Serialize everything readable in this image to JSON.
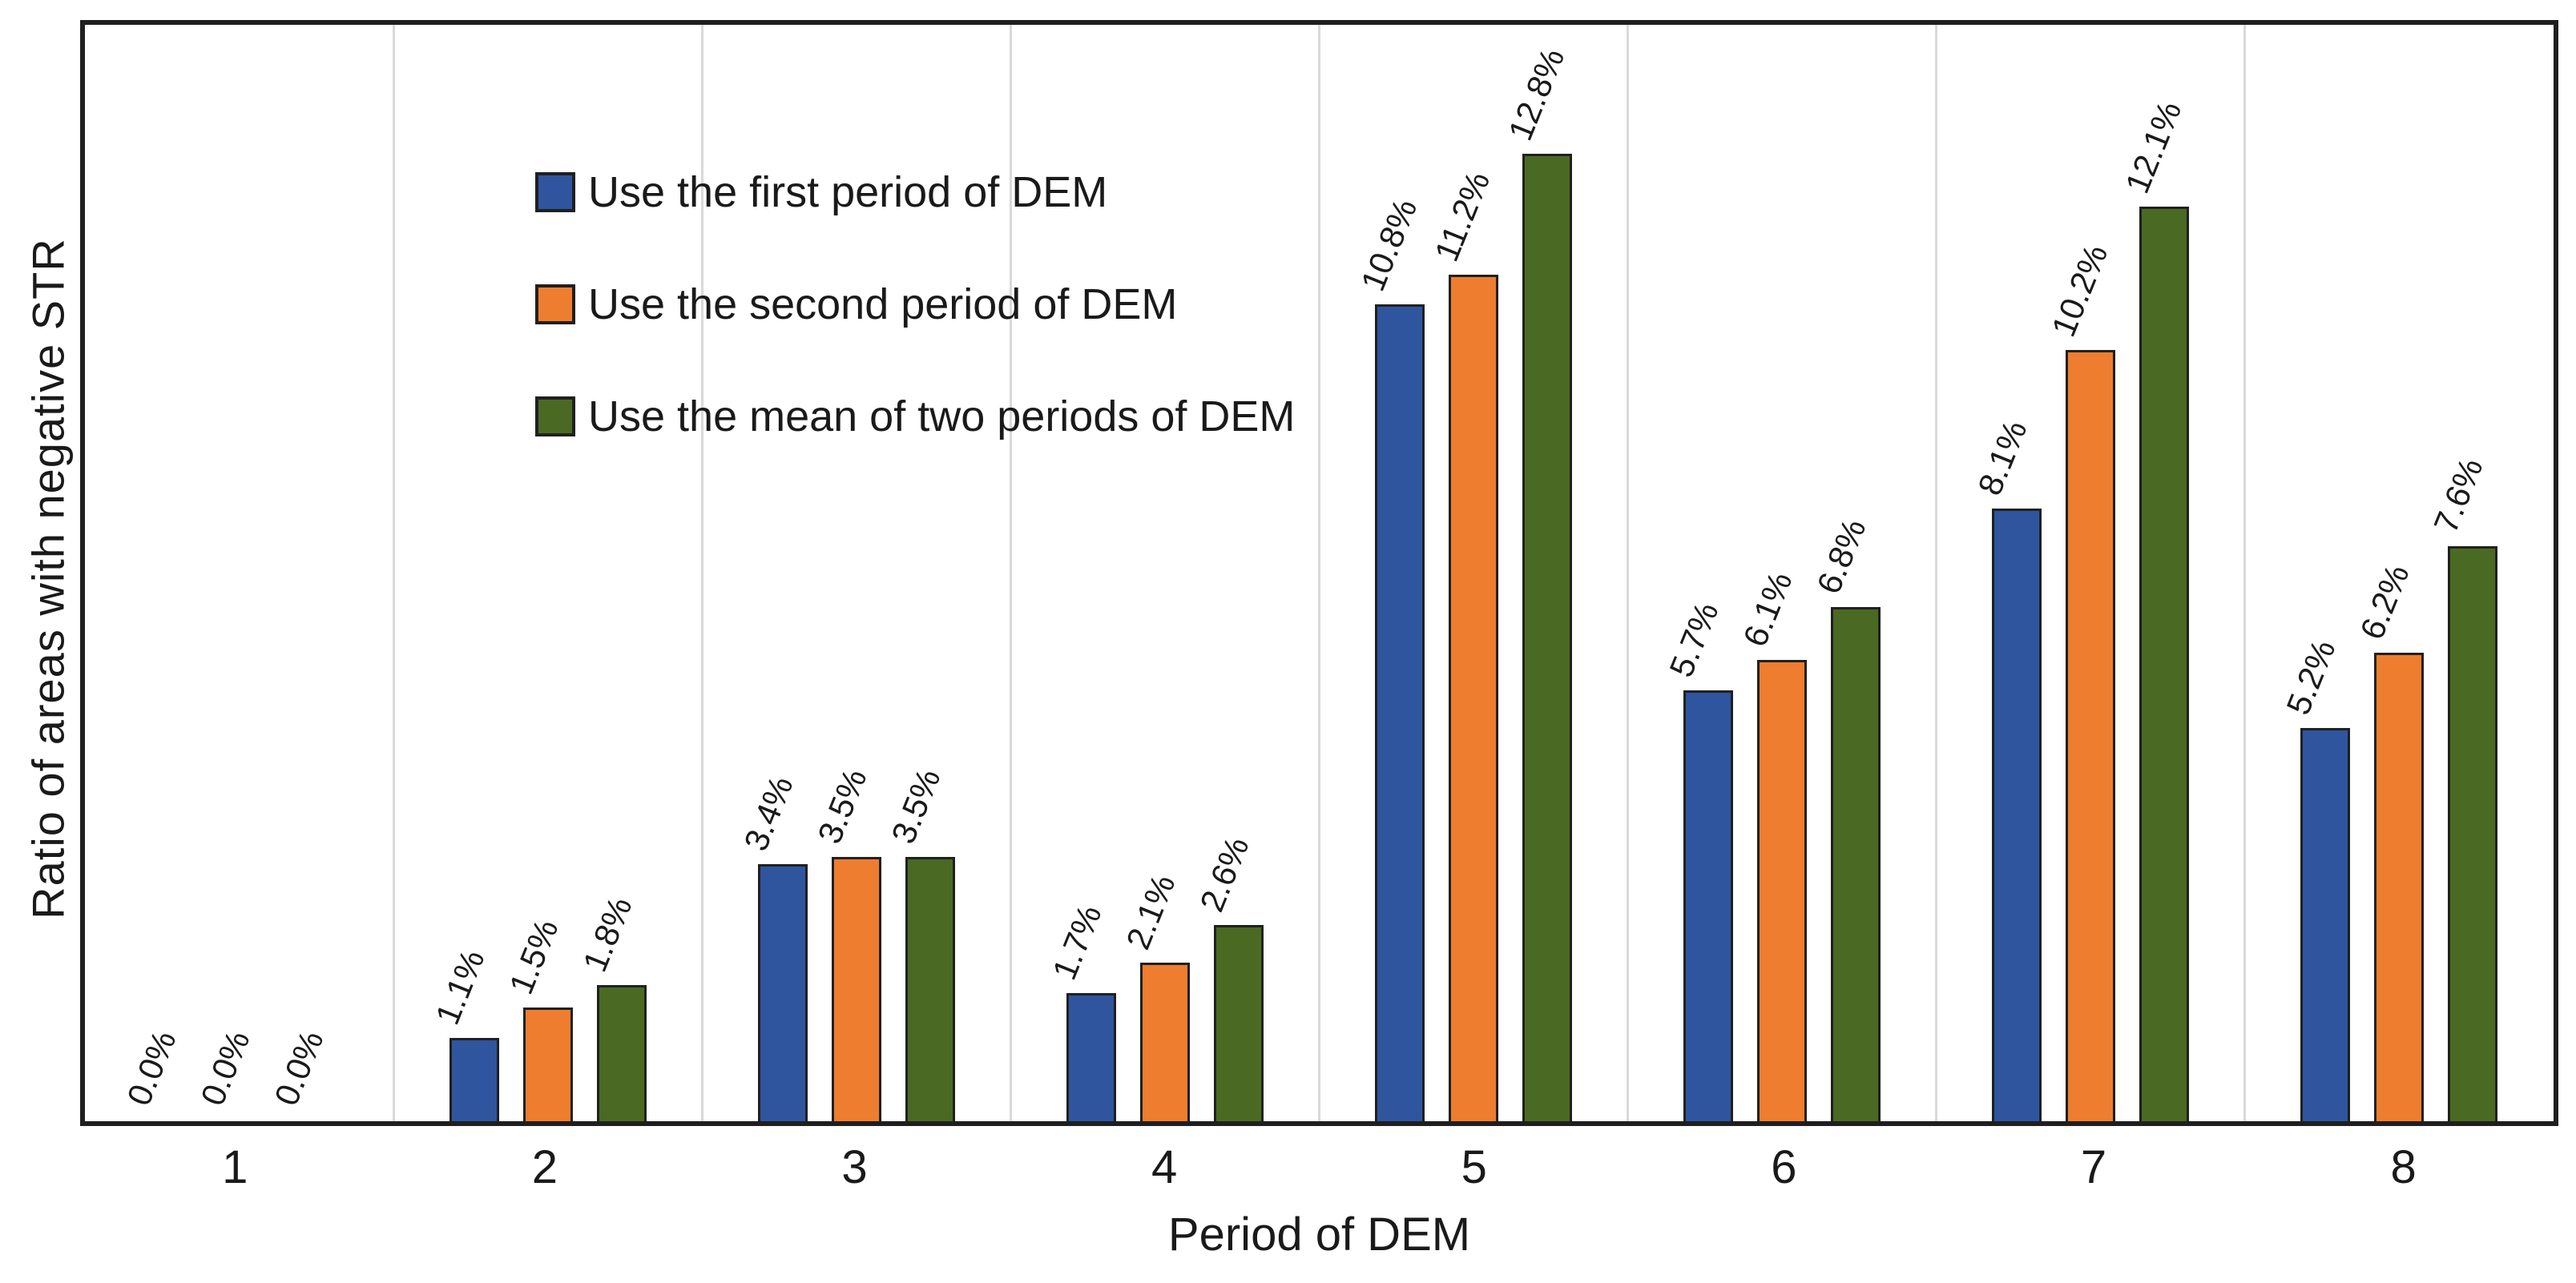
{
  "chart_data": {
    "type": "bar",
    "title": "",
    "categories": [
      "1",
      "2",
      "3",
      "4",
      "5",
      "6",
      "7",
      "8"
    ],
    "xlabel": "Period of DEM",
    "ylabel": "Ratio of areas with negative STR",
    "ylim": [
      0,
      14.5
    ],
    "y_axis_ticks_visible": false,
    "grid": "vertical category-separator gridlines only",
    "legend_position": "top-left inside plot area",
    "bar_label_rotation_deg": -68,
    "series": [
      {
        "name": "Use the first period of DEM",
        "color": "#2F559E",
        "values": [
          0.0,
          1.1,
          3.4,
          1.7,
          10.8,
          5.7,
          8.1,
          5.2
        ],
        "labels": [
          "0.0%",
          "1.1%",
          "3.4%",
          "1.7%",
          "10.8%",
          "5.7%",
          "8.1%",
          "5.2%"
        ]
      },
      {
        "name": "Use the second period of DEM",
        "color": "#EE7D2F",
        "values": [
          0.0,
          1.5,
          3.5,
          2.1,
          11.2,
          6.1,
          10.2,
          6.2
        ],
        "labels": [
          "0.0%",
          "1.5%",
          "3.5%",
          "2.1%",
          "11.2%",
          "6.1%",
          "10.2%",
          "6.2%"
        ]
      },
      {
        "name": "Use the mean of two periods of DEM",
        "color": "#4A6A23",
        "values": [
          0.0,
          1.8,
          3.5,
          2.6,
          12.8,
          6.8,
          12.1,
          7.6
        ],
        "labels": [
          "0.0%",
          "1.8%",
          "3.5%",
          "2.6%",
          "12.8%",
          "6.8%",
          "12.1%",
          "7.6%"
        ]
      }
    ],
    "colors": {
      "background": "#FFFFFF",
      "plot_border": "#1F1F1F",
      "bar_outline": "#202020",
      "gridline": "#D9D9D9",
      "text": "#1A1A1A"
    }
  }
}
